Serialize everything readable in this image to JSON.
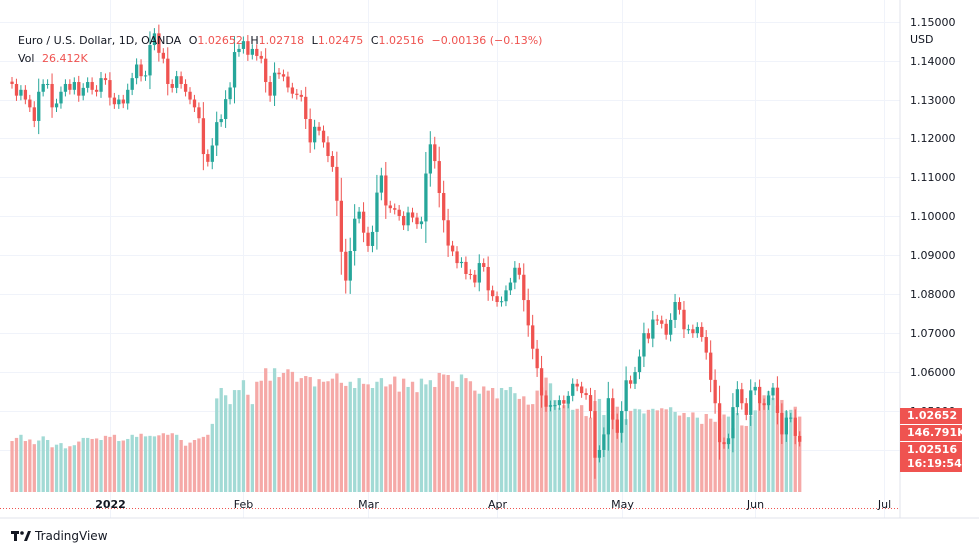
{
  "header": {
    "symbol": "Euro / U.S. Dollar, 1D, OANDA",
    "o_label": "O",
    "o_value": "1.02652",
    "h_label": "H",
    "h_value": "1.02718",
    "l_label": "L",
    "l_value": "1.02475",
    "c_label": "C",
    "c_value": "1.02516",
    "change": "−0.00136 (−0.13%)",
    "vol_label": "Vol",
    "vol_value": "26.412K"
  },
  "price_tags": {
    "open": "1.02652",
    "volume": "146.791K",
    "last": "1.02516",
    "countdown": "16:19:54"
  },
  "branding": "TradingView",
  "colors": {
    "up": "#26a69a",
    "down": "#ef5350",
    "vol_up": "#a2dad5",
    "vol_down": "#f5a9a7",
    "grid": "#f0f3fa"
  },
  "chart_data": {
    "type": "candlestick",
    "ylabel": "USD",
    "ylim": [
      1.031,
      1.153
    ],
    "yticks": [
      "1.15000",
      "1.14000",
      "1.13000",
      "1.12000",
      "1.11000",
      "1.10000",
      "1.09000",
      "1.08000",
      "1.07000",
      "1.06000",
      "1.05000",
      "1.04000"
    ],
    "ytick_values": [
      1.15,
      1.14,
      1.13,
      1.12,
      1.11,
      1.1,
      1.09,
      1.08,
      1.07,
      1.06,
      1.05,
      1.04
    ],
    "xticks": [
      {
        "label": "2022",
        "index": 22,
        "bold": true
      },
      {
        "label": "Feb",
        "index": 52
      },
      {
        "label": "Mar",
        "index": 80
      },
      {
        "label": "Apr",
        "index": 109
      },
      {
        "label": "May",
        "index": 137
      },
      {
        "label": "Jun",
        "index": 167
      },
      {
        "label": "Jul",
        "index": 196
      }
    ],
    "last_price": 1.02516,
    "close": [
      1.134,
      1.131,
      1.1325,
      1.13,
      1.128,
      1.1245,
      1.132,
      1.134,
      1.134,
      1.128,
      1.129,
      1.132,
      1.134,
      1.1325,
      1.1345,
      1.131,
      1.133,
      1.1345,
      1.1325,
      1.132,
      1.1355,
      1.135,
      1.1305,
      1.1288,
      1.13,
      1.129,
      1.1325,
      1.1355,
      1.139,
      1.136,
      1.1362,
      1.144,
      1.147,
      1.142,
      1.1405,
      1.134,
      1.133,
      1.136,
      1.134,
      1.132,
      1.13,
      1.128,
      1.1252,
      1.116,
      1.114,
      1.1182,
      1.1242,
      1.125,
      1.1301,
      1.1331,
      1.1422,
      1.143,
      1.145,
      1.1415,
      1.143,
      1.1412,
      1.1405,
      1.1345,
      1.131,
      1.1369,
      1.1365,
      1.1359,
      1.1331,
      1.1315,
      1.1312,
      1.1307,
      1.125,
      1.119,
      1.123,
      1.122,
      1.119,
      1.1155,
      1.1127,
      1.104,
      1.0909,
      1.0835,
      1.0911,
      1.0994,
      1.1012,
      1.0958,
      1.0924,
      1.096,
      1.1061,
      1.1105,
      1.1028,
      1.1021,
      1.1017,
      1.1001,
      1.0977,
      1.101,
      1.0997,
      1.098,
      1.0987,
      1.111,
      1.1185,
      1.1142,
      1.106,
      1.099,
      1.0925,
      1.091,
      1.088,
      1.0883,
      1.0852,
      1.085,
      1.083,
      1.088,
      1.087,
      1.081,
      1.0795,
      1.078,
      1.0782,
      1.081,
      1.083,
      1.0868,
      1.085,
      1.0785,
      1.072,
      1.066,
      1.061,
      1.054,
      1.0511,
      1.0515,
      1.0515,
      1.0528,
      1.0519,
      1.0539,
      1.057,
      1.0563,
      1.0546,
      1.0541,
      1.05,
      1.038,
      1.04,
      1.044,
      1.0533,
      1.0478,
      1.0444,
      1.05,
      1.0579,
      1.057,
      1.06,
      1.064,
      1.07,
      1.0686,
      1.0735,
      1.0733,
      1.0724,
      1.0696,
      1.0734,
      1.078,
      1.076,
      1.071,
      1.071,
      1.07,
      1.0716,
      1.069,
      1.065,
      1.058,
      1.052,
      1.042,
      1.0415,
      1.043,
      1.051,
      1.0556,
      1.052,
      1.049,
      1.0553,
      1.0562,
      1.052,
      1.0515,
      1.054,
      1.056,
      1.0495,
      1.044,
      1.0483,
      1.0483,
      1.0436,
      1.0421
    ],
    "volume_k": [
      98,
      104,
      110,
      98,
      101,
      92,
      99,
      107,
      100,
      86,
      91,
      94,
      84,
      88,
      90,
      97,
      104,
      104,
      102,
      103,
      100,
      108,
      106,
      110,
      98,
      99,
      102,
      110,
      106,
      112,
      107,
      108,
      107,
      109,
      113,
      110,
      113,
      110,
      100,
      89,
      95,
      100,
      103,
      106,
      110,
      131,
      180,
      200,
      186,
      169,
      196,
      196,
      215,
      187,
      169,
      212,
      214,
      238,
      214,
      238,
      221,
      229,
      236,
      231,
      212,
      219,
      223,
      221,
      203,
      217,
      212,
      213,
      218,
      228,
      210,
      204,
      212,
      200,
      219,
      208,
      207,
      200,
      212,
      219,
      203,
      207,
      222,
      193,
      218,
      202,
      212,
      192,
      218,
      207,
      215,
      202,
      229,
      226,
      225,
      213,
      202,
      226,
      219,
      213,
      195,
      189,
      203,
      195,
      200,
      180,
      200,
      196,
      202,
      190,
      179,
      184,
      168,
      169,
      195,
      201,
      220,
      209,
      177,
      162,
      167,
      175,
      158,
      160,
      167,
      146,
      143,
      175,
      179,
      148,
      176,
      150,
      164,
      156,
      140,
      156,
      160,
      159,
      151,
      158,
      160,
      157,
      161,
      159,
      163,
      154,
      147,
      152,
      144,
      153,
      143,
      131,
      150,
      141,
      135,
      141,
      149,
      145,
      123,
      152,
      128,
      127,
      147,
      157,
      171,
      186,
      194,
      181,
      166,
      177,
      156,
      158,
      164,
      145,
      154,
      147,
      149,
      162,
      163,
      155,
      156,
      164,
      145,
      134,
      144,
      154
    ]
  }
}
